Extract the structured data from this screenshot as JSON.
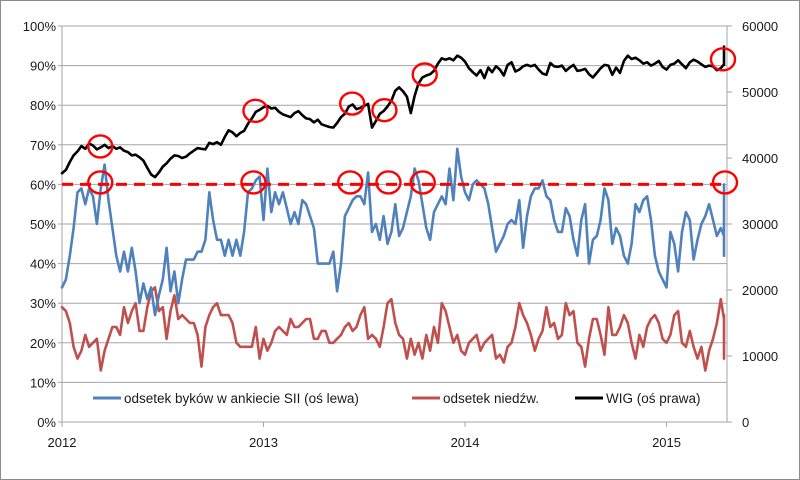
{
  "chart_data": {
    "type": "line",
    "title": "",
    "xlabel": "",
    "ylabel_left": "",
    "ylabel_right": "",
    "x_range": [
      2012.0,
      2015.3
    ],
    "x_ticks": [
      "2012",
      "2013",
      "2014",
      "2015"
    ],
    "x_tick_values": [
      2012,
      2013,
      2014,
      2015
    ],
    "y_left": {
      "range": [
        0,
        100
      ],
      "ticks": [
        "0%",
        "10%",
        "20%",
        "30%",
        "40%",
        "50%",
        "60%",
        "70%",
        "80%",
        "90%",
        "100%"
      ],
      "tick_values": [
        0,
        10,
        20,
        30,
        40,
        50,
        60,
        70,
        80,
        90,
        100
      ]
    },
    "y_right": {
      "range": [
        0,
        60000
      ],
      "ticks": [
        "0",
        "10000",
        "20000",
        "30000",
        "40000",
        "50000",
        "60000"
      ],
      "tick_values": [
        0,
        10000,
        20000,
        30000,
        40000,
        50000,
        60000
      ]
    },
    "grid": "horizontal",
    "legend": {
      "placement": "bottom-inside",
      "entries": [
        {
          "label": "odsetek byków w ankiecie SII (oś lewa)",
          "color": "#4f81bd"
        },
        {
          "label": "odsetek niedźw.",
          "color": "#c0504d"
        },
        {
          "label": "WIG (oś prawa)",
          "color": "#000000"
        }
      ]
    },
    "reference_line": {
      "axis": "left",
      "value": 60,
      "style": "dashed",
      "color": "#ff0000"
    },
    "highlights": {
      "color": "#ff0000",
      "bulls_at_60": [
        2012.19,
        2012.95,
        2013.43,
        2013.62,
        2013.79,
        2015.29
      ],
      "wig_peaks": [
        2012.19,
        2012.96,
        2013.44,
        2013.6,
        2013.8,
        2015.3
      ]
    },
    "series": [
      {
        "name": "odsetek byków w ankiecie SII (oś lewa)",
        "axis": "left",
        "color": "#4f81bd",
        "x_start": 2012.0,
        "x_step": 0.01923,
        "values": [
          34,
          36,
          42,
          49,
          58,
          59,
          55,
          59,
          57,
          50,
          59,
          65,
          56,
          49,
          42,
          38,
          43,
          38,
          44,
          38,
          30,
          35,
          31,
          34,
          27,
          32,
          36,
          44,
          33,
          38,
          30,
          36,
          41,
          41,
          41,
          43,
          43,
          46,
          58,
          51,
          46,
          46,
          42,
          46,
          42,
          46,
          42,
          48,
          58,
          59,
          61,
          62,
          51,
          64,
          53,
          58,
          55,
          58,
          54,
          50,
          53,
          50,
          56,
          55,
          52,
          49,
          40,
          40,
          40,
          40,
          43,
          33,
          40,
          52,
          54,
          56,
          57,
          57,
          55,
          63,
          48,
          50,
          46,
          52,
          45,
          48,
          55,
          47,
          49,
          53,
          57,
          64,
          61,
          55,
          49,
          46,
          53,
          55,
          57,
          55,
          64,
          56,
          69,
          62,
          58,
          56,
          60,
          61,
          60,
          59,
          55,
          49,
          43,
          45,
          47,
          50,
          51,
          50,
          56,
          44,
          52,
          57,
          59,
          59,
          61,
          57,
          56,
          51,
          48,
          48,
          54,
          52,
          46,
          42,
          51,
          55,
          40,
          46,
          47,
          51,
          59,
          56,
          45,
          49,
          47,
          42,
          40,
          45,
          55,
          53,
          56,
          57,
          51,
          42,
          38,
          36,
          34,
          48,
          45,
          38,
          48,
          53,
          51,
          41,
          46,
          50,
          52,
          55,
          51,
          47,
          49,
          47,
          49,
          42,
          53,
          56,
          53,
          55,
          58,
          57,
          51,
          59,
          56,
          57,
          58,
          60
        ]
      },
      {
        "name": "odsetek niedźw.",
        "axis": "left",
        "color": "#c0504d",
        "x_start": 2012.0,
        "x_step": 0.01923,
        "values": [
          29,
          28,
          25,
          19,
          16,
          18,
          22,
          19,
          20,
          21,
          13,
          18,
          21,
          24,
          24,
          22,
          29,
          25,
          28,
          30,
          23,
          23,
          29,
          33,
          34,
          28,
          29,
          21,
          28,
          32,
          26,
          27,
          26,
          25,
          25,
          22,
          14,
          24,
          27,
          29,
          30,
          27,
          27,
          27,
          25,
          20,
          19,
          19,
          19,
          19,
          24,
          16,
          21,
          18,
          20,
          23,
          24,
          23,
          22,
          26,
          24,
          24,
          25,
          26,
          26,
          21,
          21,
          23,
          23,
          20,
          20,
          21,
          22,
          24,
          25,
          23,
          24,
          27,
          29,
          21,
          22,
          21,
          19,
          24,
          30,
          31,
          25,
          22,
          21,
          16,
          21,
          17,
          20,
          16,
          22,
          18,
          24,
          20,
          30,
          28,
          24,
          20,
          22,
          18,
          17,
          20,
          21,
          22,
          18,
          20,
          21,
          22,
          16,
          17,
          15,
          19,
          20,
          24,
          30,
          27,
          25,
          22,
          18,
          21,
          23,
          29,
          24,
          25,
          21,
          22,
          30,
          27,
          28,
          20,
          19,
          14,
          21,
          26,
          26,
          22,
          17,
          29,
          22,
          22,
          24,
          27,
          25,
          20,
          16,
          22,
          19,
          24,
          26,
          27,
          25,
          21,
          20,
          22,
          27,
          28,
          20,
          19,
          23,
          19,
          16,
          19,
          13,
          18,
          21,
          25,
          31,
          26,
          25,
          23,
          21,
          24,
          27,
          24,
          20,
          21,
          20,
          16,
          23,
          21,
          18,
          20,
          21,
          23,
          22,
          23,
          23,
          21
        ]
      },
      {
        "name": "WIG (oś prawa)",
        "axis": "right",
        "color": "#000000",
        "x_start": 2012.0,
        "x_step": 0.01923,
        "values": [
          37700,
          38200,
          39400,
          40400,
          41000,
          41800,
          41400,
          42200,
          41900,
          41300,
          41600,
          42000,
          41500,
          41800,
          41400,
          41600,
          41100,
          40900,
          40400,
          40500,
          40100,
          39600,
          38500,
          37500,
          37100,
          37800,
          38700,
          39200,
          39900,
          40400,
          40300,
          40000,
          40200,
          40700,
          41100,
          41500,
          41400,
          41300,
          42300,
          42100,
          42400,
          42000,
          43200,
          44200,
          43900,
          43300,
          43800,
          44100,
          45200,
          46000,
          47000,
          47300,
          47700,
          47900,
          47500,
          47600,
          47000,
          46600,
          46400,
          46200,
          46800,
          47100,
          46500,
          46000,
          45900,
          45400,
          45800,
          45100,
          44900,
          44700,
          44600,
          45300,
          46200,
          46700,
          47800,
          48100,
          47400,
          47600,
          47900,
          48200,
          44600,
          45600,
          46700,
          47100,
          47800,
          48700,
          50200,
          50700,
          50100,
          49300,
          46800,
          49400,
          51300,
          52200,
          52500,
          52700,
          53200,
          54300,
          55100,
          54900,
          55100,
          54800,
          55500,
          55200,
          54600,
          53600,
          53000,
          52500,
          53300,
          52100,
          53700,
          53000,
          53900,
          53400,
          52500,
          54100,
          54500,
          53100,
          53400,
          53900,
          54100,
          53900,
          54100,
          53400,
          52800,
          52600,
          54400,
          53900,
          53800,
          54000,
          53200,
          53700,
          54100,
          53200,
          53300,
          53500,
          52700,
          52200,
          52900,
          53600,
          54100,
          54000,
          52600,
          53700,
          52900,
          54700,
          55500,
          55000,
          55200,
          54800,
          54300,
          54500,
          54000,
          54300,
          54700,
          53800,
          53400,
          54100,
          54300,
          54800,
          54200,
          53600,
          54500,
          54900,
          54600,
          54200,
          53800,
          54000,
          53900,
          53300,
          53600,
          54200,
          54800,
          54400,
          54100,
          54600,
          55000,
          54800,
          55700,
          56100,
          56900
        ]
      }
    ]
  }
}
